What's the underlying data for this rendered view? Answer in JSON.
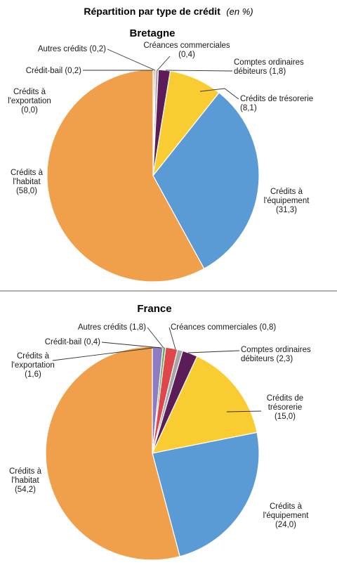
{
  "title": "Répartition par type de crédit",
  "title_unit": "(en %)",
  "colors": {
    "Crédits à l'habitat": "#F0A04B",
    "Crédits à l'équipement": "#5B9BD5",
    "Crédits de trésorerie": "#F9CD32",
    "Comptes ordinaires débiteurs": "#5B1C57",
    "Créances commerciales": "#A6A6A6",
    "Autres crédits": "#E0474C",
    "Crédit-bail": "#6AA84F",
    "Crédits à l'exportation": "#8E7CC3"
  },
  "chart_data": [
    {
      "type": "pie",
      "title": "Bretagne",
      "slices": [
        {
          "label": "Crédits à l'exportation",
          "value": 0.0,
          "value_label": "(0,0)",
          "lines": [
            "Crédits à",
            "l'exportation",
            "(0,0)"
          ]
        },
        {
          "label": "Crédit-bail",
          "value": 0.2,
          "value_label": "(0,2)",
          "lines": [
            "Crédit-bail (0,2)"
          ]
        },
        {
          "label": "Autres crédits",
          "value": 0.2,
          "value_label": "(0,2)",
          "lines": [
            "Autres crédits (0,2)"
          ]
        },
        {
          "label": "Créances commerciales",
          "value": 0.4,
          "value_label": "(0,4)",
          "lines": [
            "Créances commerciales",
            "(0,4)"
          ]
        },
        {
          "label": "Comptes ordinaires débiteurs",
          "value": 1.8,
          "value_label": "(1,8)",
          "lines": [
            "Comptes ordinaires",
            "débiteurs (1,8)"
          ]
        },
        {
          "label": "Crédits de trésorerie",
          "value": 8.1,
          "value_label": "(8,1)",
          "lines": [
            "Crédits de trésorerie",
            "(8,1)"
          ]
        },
        {
          "label": "Crédits à l'équipement",
          "value": 31.3,
          "value_label": "(31,3)",
          "lines": [
            "Crédits à",
            "l'équipement",
            "(31,3)"
          ]
        },
        {
          "label": "Crédits à l'habitat",
          "value": 58.0,
          "value_label": "(58,0)",
          "lines": [
            "Crédits à",
            "l'habitat",
            "(58,0)"
          ]
        }
      ]
    },
    {
      "type": "pie",
      "title": "France",
      "slices": [
        {
          "label": "Crédits à l'exportation",
          "value": 1.6,
          "value_label": "(1,6)",
          "lines": [
            "Crédits à",
            "l'exportation",
            "(1,6)"
          ]
        },
        {
          "label": "Crédit-bail",
          "value": 0.4,
          "value_label": "(0,4)",
          "lines": [
            "Crédit-bail (0,4)"
          ]
        },
        {
          "label": "Autres crédits",
          "value": 1.8,
          "value_label": "(1,8)",
          "lines": [
            "Autres crédits (1,8)"
          ]
        },
        {
          "label": "Créances commerciales",
          "value": 0.8,
          "value_label": "(0,8)",
          "lines": [
            "Créances commerciales (0,8)"
          ]
        },
        {
          "label": "Comptes ordinaires débiteurs",
          "value": 2.3,
          "value_label": "(2,3)",
          "lines": [
            "Comptes ordinaires",
            "débiteurs (2,3)"
          ]
        },
        {
          "label": "Crédits de trésorerie",
          "value": 15.0,
          "value_label": "(15,0)",
          "lines": [
            "Crédits de",
            "trésorerie",
            "(15,0)"
          ]
        },
        {
          "label": "Crédits à l'équipement",
          "value": 24.0,
          "value_label": "(24,0)",
          "lines": [
            "Crédits à",
            "l'équipement",
            "(24,0)"
          ]
        },
        {
          "label": "Crédits à l'habitat",
          "value": 54.2,
          "value_label": "(54,2)",
          "lines": [
            "Crédits à",
            "l'habitat",
            "(54,2)"
          ]
        }
      ]
    }
  ]
}
